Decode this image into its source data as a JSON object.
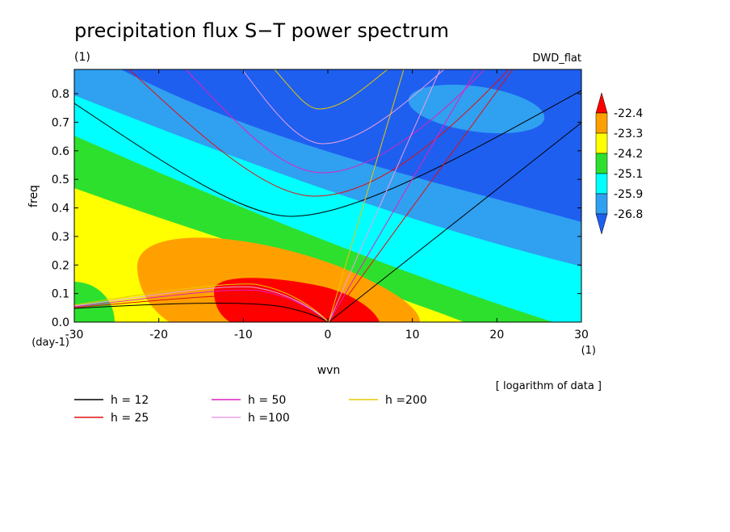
{
  "chart_data": {
    "type": "contour",
    "title": "precipitation flux S−T power spectrum",
    "subtitle": "(1)",
    "run_label": "DWD_flat",
    "x_label": "wvn",
    "x_unit": "(1)",
    "y_label": "freq",
    "y_unit": "(day-1)",
    "note": "[ logarithm of data ]",
    "xlim": [
      -30,
      30
    ],
    "xticks": [
      -30,
      -20,
      -10,
      0,
      10,
      20,
      30
    ],
    "ylim": [
      0,
      0.885
    ],
    "yticks": [
      {
        "value": 0,
        "label": "0.0"
      },
      0.1,
      0.2,
      0.3,
      0.4,
      0.5,
      0.6,
      0.7,
      0.8
    ],
    "levels": [
      -22.4,
      -23.3,
      -24.2,
      -25.1,
      -25.9,
      -26.8
    ],
    "colors": [
      "#ff0000",
      "#ffa000",
      "#ffff00",
      "#2ee02e",
      "#00ffff",
      "#30a0f0",
      "#1e5ff0"
    ],
    "series": [
      {
        "name": "h = 12",
        "color": "#000000"
      },
      {
        "name": "h = 25",
        "color": "#e01010"
      },
      {
        "name": "h = 50",
        "color": "#e020c0"
      },
      {
        "name": "h =100",
        "color": "#e8a0e8"
      },
      {
        "name": "h =200",
        "color": "#e8c800"
      }
    ]
  }
}
